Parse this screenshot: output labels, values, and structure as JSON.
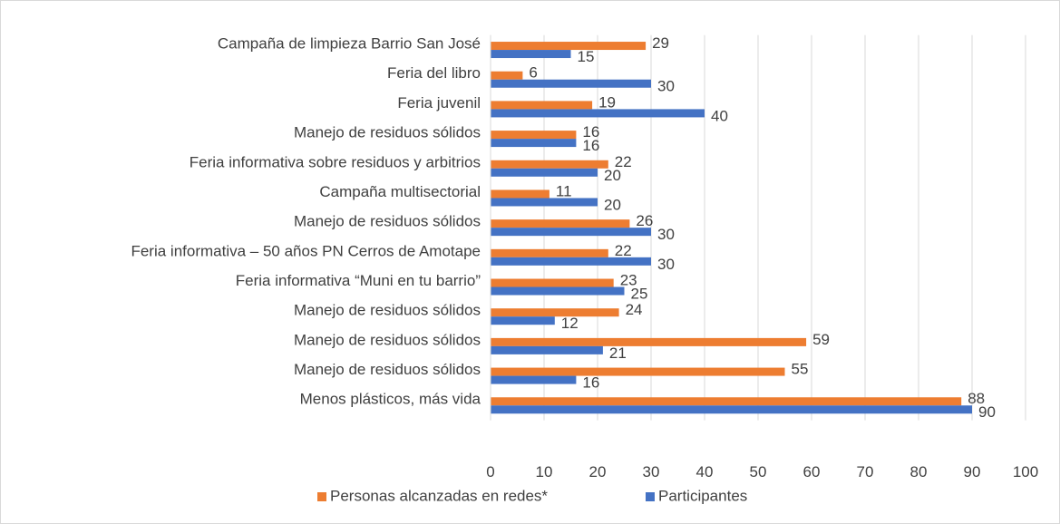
{
  "chart_data": {
    "type": "bar",
    "orientation": "horizontal",
    "categories": [
      "Campaña de limpieza Barrio San José",
      "Feria del libro",
      "Feria juvenil",
      "Manejo de residuos sólidos",
      "Feria informativa sobre residuos y arbitrios",
      "Campaña multisectorial",
      "Manejo de residuos sólidos",
      "Feria informativa – 50 años PN Cerros de Amotape",
      "Feria informativa “Muni en tu barrio”",
      "Manejo de residuos sólidos",
      "Manejo de residuos sólidos",
      "Manejo de residuos sólidos",
      "Menos plásticos, más vida"
    ],
    "series": [
      {
        "name": "Personas alcanzadas en redes*",
        "color": "#ed7d31",
        "values": [
          29,
          6,
          19,
          16,
          22,
          11,
          26,
          22,
          23,
          24,
          59,
          55,
          88
        ]
      },
      {
        "name": "Participantes",
        "color": "#4472c4",
        "values": [
          15,
          30,
          40,
          16,
          20,
          20,
          30,
          30,
          25,
          12,
          21,
          16,
          90
        ]
      }
    ],
    "xlim": [
      0,
      100
    ],
    "xticks": [
      0,
      10,
      20,
      30,
      40,
      50,
      60,
      70,
      80,
      90,
      100
    ],
    "grid": true,
    "legend": "bottom"
  }
}
